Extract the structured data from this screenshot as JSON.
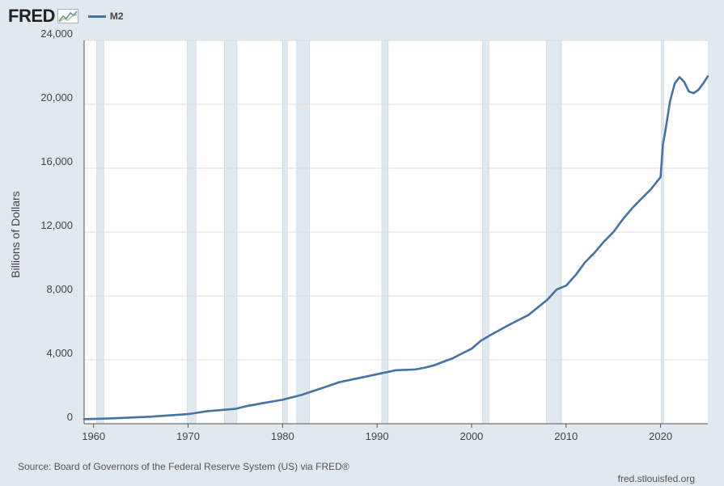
{
  "header": {
    "logo": "FRED",
    "legend_label": "M2"
  },
  "footer": {
    "source": "Source: Board of Governors of the Federal Reserve System (US) via FRED®",
    "url": "fred.stlouisfed.org"
  },
  "colors": {
    "background": "#e1e9f0",
    "plot_bg": "#ffffff",
    "line": "#4572a7",
    "recession": "#e1e9f0",
    "grid": "#dddddd"
  },
  "chart_data": {
    "type": "line",
    "title": "",
    "xlabel": "",
    "ylabel": "Billions of Dollars",
    "xlim": [
      1959,
      2025
    ],
    "ylim": [
      0,
      24000
    ],
    "xticks": [
      1960,
      1970,
      1980,
      1990,
      2000,
      2010,
      2020
    ],
    "yticks": [
      0,
      4000,
      8000,
      12000,
      16000,
      20000,
      24000
    ],
    "ytick_labels": [
      "0",
      "4,000",
      "8,000",
      "12,000",
      "16,000",
      "20,000",
      "24,000"
    ],
    "grid": true,
    "recessions": [
      [
        1960.33,
        1961.08
      ],
      [
        1969.92,
        1970.83
      ],
      [
        1973.83,
        1975.17
      ],
      [
        1980.0,
        1980.5
      ],
      [
        1981.5,
        1982.83
      ],
      [
        1990.5,
        1991.17
      ],
      [
        2001.17,
        2001.83
      ],
      [
        2007.92,
        2009.5
      ],
      [
        2020.08,
        2020.33
      ]
    ],
    "series": [
      {
        "name": "M2",
        "x": [
          1959,
          1960,
          1962,
          1964,
          1966,
          1968,
          1970,
          1972,
          1974,
          1975,
          1976,
          1978,
          1980,
          1982,
          1984,
          1986,
          1988,
          1990,
          1992,
          1994,
          1995,
          1996,
          1998,
          2000,
          2001,
          2002,
          2004,
          2006,
          2008,
          2009,
          2010,
          2011,
          2012,
          2013,
          2014,
          2015,
          2016,
          2017,
          2018,
          2019,
          2020,
          2020.25,
          2020.5,
          2021,
          2021.5,
          2022,
          2022.5,
          2023,
          2023.5,
          2024,
          2024.5,
          2025
        ],
        "y": [
          290,
          300,
          340,
          390,
          440,
          520,
          600,
          780,
          880,
          930,
          1080,
          1300,
          1500,
          1800,
          2200,
          2600,
          2850,
          3100,
          3350,
          3400,
          3500,
          3650,
          4100,
          4700,
          5200,
          5550,
          6200,
          6800,
          7750,
          8400,
          8650,
          9300,
          10100,
          10700,
          11400,
          12000,
          12800,
          13500,
          14100,
          14700,
          15450,
          17500,
          18300,
          20200,
          21300,
          21700,
          21400,
          20800,
          20700,
          20900,
          21300,
          21750
        ]
      }
    ]
  }
}
